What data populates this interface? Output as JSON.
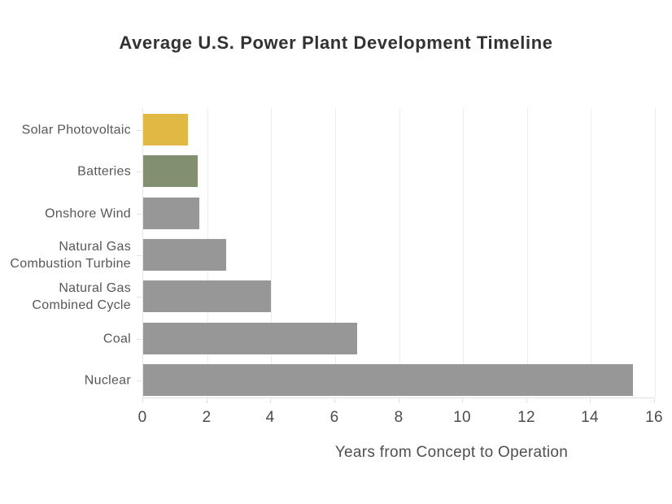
{
  "chart_data": {
    "type": "bar",
    "orientation": "horizontal",
    "title": "Average U.S. Power Plant Development Timeline",
    "xlabel": "Years from Concept to Operation",
    "categories": [
      [
        "Solar Photovoltaic"
      ],
      [
        "Batteries"
      ],
      [
        "Onshore Wind"
      ],
      [
        "Natural Gas",
        "Combustion Turbine"
      ],
      [
        "Natural Gas",
        "Combined Cycle"
      ],
      [
        "Coal"
      ],
      [
        "Nuclear"
      ]
    ],
    "values": [
      1.4,
      1.7,
      1.75,
      2.6,
      4.0,
      6.7,
      15.3
    ],
    "bar_colors": [
      "#e2b845",
      "#82906f",
      "#979797",
      "#979797",
      "#979797",
      "#979797",
      "#979797"
    ],
    "xlim": [
      0,
      16
    ],
    "xticks": [
      0,
      2,
      4,
      6,
      8,
      10,
      12,
      14,
      16
    ],
    "grid": true,
    "legend": "none"
  },
  "colors": {
    "solar_accent": "#e2b845",
    "battery_accent": "#82906f",
    "bar_default": "#979797",
    "gridline": "#ededed",
    "axis_line": "#e0e0e0",
    "title_text": "#323232",
    "label_text": "#575757",
    "tick_text": "#4c4c4c"
  }
}
